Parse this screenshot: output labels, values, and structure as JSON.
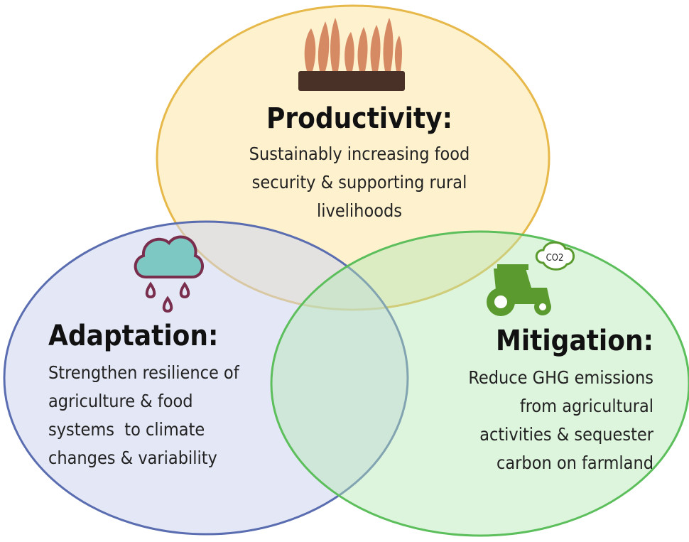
{
  "circles": [
    {
      "title": "Productivity:",
      "lines": [
        "Sustainably increasing food",
        "security & supporting rural",
        "livelihoods"
      ]
    },
    {
      "title": "Adaptation:",
      "lines": [
        "Strengthen resilience of",
        "agriculture & food",
        "systems  to climate",
        "changes & variability"
      ]
    },
    {
      "title": "Mitigation:",
      "lines": [
        "Reduce GHG emissions",
        "from agricultural",
        "activities & sequester",
        "carbon on farmland"
      ]
    }
  ],
  "icon_label": "CO2"
}
